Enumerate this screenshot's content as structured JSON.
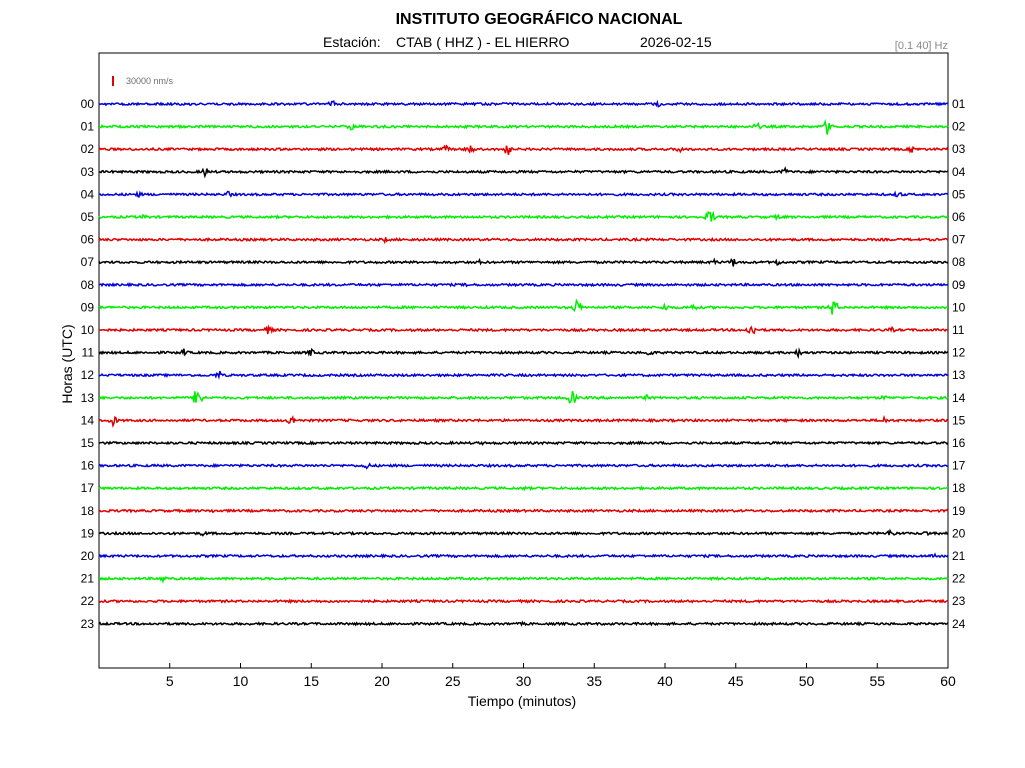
{
  "header": {
    "institution": "INSTITUTO GEOGRÁFICO NACIONAL",
    "station_label": "Estación:",
    "station": "CTAB ( HHZ ) - EL HIERRO",
    "date": "2026-02-15",
    "filter": "[0.1 40] Hz"
  },
  "chart_data": {
    "type": "line",
    "title": "INSTITUTO GEOGRÁFICO NACIONAL",
    "xlabel": "Tiempo (minutos)",
    "ylabel": "Horas (UTC)",
    "xlim": [
      0,
      60
    ],
    "x_ticks": [
      "5",
      "10",
      "15",
      "20",
      "25",
      "30",
      "35",
      "40",
      "45",
      "50",
      "55",
      "60"
    ],
    "amplitude_scale": "30000 nm/s",
    "grid": false,
    "trace_colors": [
      "#0000dd",
      "#00ee00",
      "#e00000",
      "#000000"
    ],
    "traces": [
      {
        "left": "00",
        "right": "01",
        "color": "#0000dd",
        "events": [
          [
            16.5,
            4
          ],
          [
            39.5,
            3
          ],
          [
            50,
            2
          ]
        ]
      },
      {
        "left": "01",
        "right": "02",
        "color": "#00ee00",
        "events": [
          [
            17.8,
            4
          ],
          [
            46.5,
            4
          ],
          [
            51.5,
            9
          ]
        ]
      },
      {
        "left": "02",
        "right": "03",
        "color": "#e00000",
        "events": [
          [
            24.5,
            4
          ],
          [
            26.2,
            6
          ],
          [
            28.8,
            9
          ],
          [
            41,
            4
          ],
          [
            57.5,
            4
          ]
        ]
      },
      {
        "left": "03",
        "right": "04",
        "color": "#000000",
        "events": [
          [
            7.5,
            5
          ],
          [
            48.5,
            4
          ]
        ]
      },
      {
        "left": "04",
        "right": "05",
        "color": "#0000dd",
        "events": [
          [
            2.8,
            3
          ],
          [
            9.2,
            4
          ],
          [
            56.5,
            4
          ]
        ]
      },
      {
        "left": "05",
        "right": "06",
        "color": "#00ee00",
        "events": [
          [
            3.2,
            3
          ],
          [
            43.2,
            9
          ],
          [
            48,
            3
          ]
        ]
      },
      {
        "left": "06",
        "right": "07",
        "color": "#e00000",
        "events": [
          [
            20.2,
            3
          ]
        ]
      },
      {
        "left": "07",
        "right": "08",
        "color": "#000000",
        "events": [
          [
            27,
            3
          ],
          [
            43.5,
            3
          ],
          [
            44.8,
            5
          ],
          [
            48,
            4
          ]
        ]
      },
      {
        "left": "08",
        "right": "09",
        "color": "#0000dd",
        "events": [
          [
            26,
            2
          ]
        ]
      },
      {
        "left": "09",
        "right": "10",
        "color": "#00ee00",
        "events": [
          [
            33.8,
            9
          ],
          [
            40,
            4
          ],
          [
            42,
            4
          ],
          [
            51.9,
            10
          ]
        ]
      },
      {
        "left": "10",
        "right": "11",
        "color": "#e00000",
        "events": [
          [
            12,
            5
          ],
          [
            46.1,
            8
          ],
          [
            56,
            3
          ]
        ]
      },
      {
        "left": "11",
        "right": "12",
        "color": "#000000",
        "events": [
          [
            6,
            4
          ],
          [
            15,
            4
          ],
          [
            38.9,
            4
          ],
          [
            49.5,
            5
          ]
        ]
      },
      {
        "left": "12",
        "right": "13",
        "color": "#0000dd",
        "events": [
          [
            8.5,
            5
          ]
        ]
      },
      {
        "left": "13",
        "right": "14",
        "color": "#00ee00",
        "events": [
          [
            7,
            14
          ],
          [
            33.4,
            9
          ],
          [
            38.7,
            3
          ],
          [
            55.5,
            3
          ]
        ]
      },
      {
        "left": "14",
        "right": "15",
        "color": "#e00000",
        "events": [
          [
            1,
            6
          ],
          [
            13.6,
            6
          ],
          [
            55.5,
            4
          ]
        ]
      },
      {
        "left": "15",
        "right": "16",
        "color": "#000000",
        "events": [
          [
            27,
            2
          ]
        ]
      },
      {
        "left": "16",
        "right": "17",
        "color": "#0000dd",
        "events": [
          [
            18.9,
            4
          ]
        ]
      },
      {
        "left": "17",
        "right": "18",
        "color": "#00ee00",
        "events": [
          [
            30,
            2
          ]
        ]
      },
      {
        "left": "18",
        "right": "19",
        "color": "#e00000",
        "events": [
          [
            8,
            2
          ]
        ]
      },
      {
        "left": "19",
        "right": "20",
        "color": "#000000",
        "events": [
          [
            7.4,
            3
          ],
          [
            56,
            5
          ],
          [
            58.5,
            3
          ]
        ]
      },
      {
        "left": "20",
        "right": "21",
        "color": "#0000dd",
        "events": [
          [
            59,
            4
          ]
        ]
      },
      {
        "left": "21",
        "right": "22",
        "color": "#00ee00",
        "events": [
          [
            4.5,
            4
          ]
        ]
      },
      {
        "left": "22",
        "right": "23",
        "color": "#e00000",
        "events": [
          [
            2,
            2
          ]
        ]
      },
      {
        "left": "23",
        "right": "24",
        "color": "#000000",
        "events": [
          [
            30,
            2
          ]
        ]
      }
    ]
  }
}
